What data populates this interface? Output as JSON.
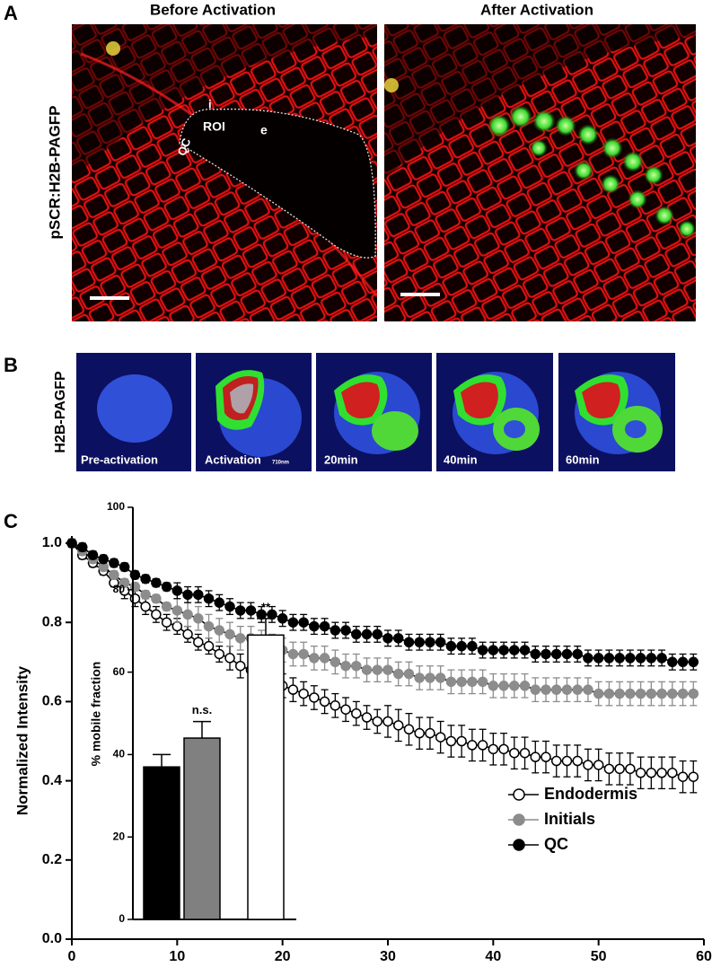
{
  "figure": {
    "panel_a": {
      "label": "A",
      "titles": [
        "Before Activation",
        "After Activation"
      ],
      "ylabel": "pSCR:H2B-PAGFP",
      "annotations": [
        "i",
        "ROI",
        "e",
        "QC"
      ]
    },
    "panel_b": {
      "label": "B",
      "ylabel": "H2B-PAGFP",
      "frames": [
        "Pre-activation",
        "Activation",
        "20min",
        "40min",
        "60min"
      ],
      "wavelength": "710nm"
    },
    "panel_c": {
      "label": "C"
    }
  },
  "chart_data": [
    {
      "type": "line",
      "ylabel": "Normalized Intensity",
      "x": [
        0,
        1,
        2,
        3,
        4,
        5,
        6,
        7,
        8,
        9,
        10,
        11,
        12,
        13,
        14,
        15,
        16,
        17,
        18,
        19,
        20,
        21,
        22,
        23,
        24,
        25,
        26,
        27,
        28,
        29,
        30,
        31,
        32,
        33,
        34,
        35,
        36,
        37,
        38,
        39,
        40,
        41,
        42,
        43,
        44,
        45,
        46,
        47,
        48,
        49,
        50,
        51,
        52,
        53,
        54,
        55,
        56,
        57,
        58,
        59
      ],
      "xlim": [
        0,
        60
      ],
      "xticks": [
        0,
        10,
        20,
        30,
        40,
        50,
        60
      ],
      "ylim": [
        0,
        1
      ],
      "yticks": [
        {
          "value": 0,
          "label": "0.0"
        },
        0.2,
        0.4,
        0.6,
        0.8,
        {
          "value": 1,
          "label": "1.0"
        }
      ],
      "legend": "lower right",
      "series": [
        {
          "name": "Endodermis",
          "color": "#000000",
          "fill": "#ffffff",
          "values": [
            1.0,
            0.97,
            0.95,
            0.93,
            0.9,
            0.88,
            0.86,
            0.84,
            0.82,
            0.8,
            0.79,
            0.77,
            0.75,
            0.74,
            0.72,
            0.71,
            0.69,
            0.68,
            0.67,
            0.65,
            0.64,
            0.63,
            0.62,
            0.61,
            0.6,
            0.59,
            0.58,
            0.57,
            0.56,
            0.55,
            0.55,
            0.54,
            0.53,
            0.52,
            0.52,
            0.51,
            0.5,
            0.5,
            0.49,
            0.49,
            0.48,
            0.48,
            0.47,
            0.47,
            0.46,
            0.46,
            0.45,
            0.45,
            0.45,
            0.44,
            0.44,
            0.43,
            0.43,
            0.43,
            0.42,
            0.42,
            0.42,
            0.42,
            0.41,
            0.41
          ],
          "errors": [
            0.01,
            0.01,
            0.01,
            0.01,
            0.01,
            0.02,
            0.02,
            0.02,
            0.02,
            0.02,
            0.02,
            0.02,
            0.02,
            0.02,
            0.02,
            0.03,
            0.03,
            0.03,
            0.03,
            0.03,
            0.03,
            0.03,
            0.03,
            0.03,
            0.03,
            0.03,
            0.03,
            0.03,
            0.03,
            0.03,
            0.04,
            0.04,
            0.04,
            0.04,
            0.04,
            0.04,
            0.04,
            0.04,
            0.04,
            0.04,
            0.04,
            0.04,
            0.04,
            0.04,
            0.04,
            0.04,
            0.04,
            0.04,
            0.04,
            0.04,
            0.04,
            0.04,
            0.04,
            0.04,
            0.04,
            0.04,
            0.04,
            0.04,
            0.04,
            0.04
          ]
        },
        {
          "name": "Initials",
          "color": "#8c8c8c",
          "fill": "#8c8c8c",
          "values": [
            1.0,
            0.98,
            0.96,
            0.94,
            0.92,
            0.9,
            0.89,
            0.87,
            0.86,
            0.84,
            0.83,
            0.82,
            0.81,
            0.79,
            0.78,
            0.77,
            0.76,
            0.76,
            0.75,
            0.74,
            0.73,
            0.72,
            0.72,
            0.71,
            0.71,
            0.7,
            0.69,
            0.69,
            0.68,
            0.68,
            0.68,
            0.67,
            0.67,
            0.66,
            0.66,
            0.66,
            0.65,
            0.65,
            0.65,
            0.65,
            0.64,
            0.64,
            0.64,
            0.64,
            0.63,
            0.63,
            0.63,
            0.63,
            0.63,
            0.63,
            0.62,
            0.62,
            0.62,
            0.62,
            0.62,
            0.62,
            0.62,
            0.62,
            0.62,
            0.62
          ],
          "errors": [
            0.01,
            0.01,
            0.01,
            0.01,
            0.01,
            0.01,
            0.01,
            0.01,
            0.01,
            0.01,
            0.03,
            0.03,
            0.03,
            0.03,
            0.03,
            0.03,
            0.03,
            0.03,
            0.03,
            0.03,
            0.03,
            0.03,
            0.03,
            0.03,
            0.03,
            0.03,
            0.03,
            0.03,
            0.03,
            0.03,
            0.03,
            0.03,
            0.03,
            0.03,
            0.03,
            0.03,
            0.03,
            0.03,
            0.03,
            0.03,
            0.03,
            0.03,
            0.03,
            0.03,
            0.03,
            0.03,
            0.03,
            0.03,
            0.03,
            0.03,
            0.03,
            0.03,
            0.03,
            0.03,
            0.03,
            0.03,
            0.03,
            0.03,
            0.03,
            0.03
          ]
        },
        {
          "name": "QC",
          "color": "#000000",
          "fill": "#000000",
          "values": [
            1.0,
            0.99,
            0.97,
            0.96,
            0.95,
            0.94,
            0.92,
            0.91,
            0.9,
            0.89,
            0.88,
            0.87,
            0.87,
            0.86,
            0.85,
            0.84,
            0.83,
            0.83,
            0.82,
            0.82,
            0.81,
            0.8,
            0.8,
            0.79,
            0.79,
            0.78,
            0.78,
            0.77,
            0.77,
            0.77,
            0.76,
            0.76,
            0.75,
            0.75,
            0.75,
            0.75,
            0.74,
            0.74,
            0.74,
            0.73,
            0.73,
            0.73,
            0.73,
            0.73,
            0.72,
            0.72,
            0.72,
            0.72,
            0.72,
            0.71,
            0.71,
            0.71,
            0.71,
            0.71,
            0.71,
            0.71,
            0.71,
            0.7,
            0.7,
            0.7
          ],
          "errors": [
            0.01,
            0.01,
            0.01,
            0.01,
            0.01,
            0.01,
            0.01,
            0.01,
            0.01,
            0.01,
            0.02,
            0.02,
            0.02,
            0.02,
            0.02,
            0.02,
            0.02,
            0.02,
            0.02,
            0.02,
            0.02,
            0.02,
            0.02,
            0.02,
            0.02,
            0.02,
            0.02,
            0.02,
            0.02,
            0.02,
            0.02,
            0.02,
            0.02,
            0.02,
            0.02,
            0.02,
            0.02,
            0.02,
            0.02,
            0.02,
            0.02,
            0.02,
            0.02,
            0.02,
            0.02,
            0.02,
            0.02,
            0.02,
            0.02,
            0.02,
            0.02,
            0.02,
            0.02,
            0.02,
            0.02,
            0.02,
            0.02,
            0.02,
            0.02,
            0.02
          ]
        }
      ]
    },
    {
      "type": "bar",
      "ylabel": "% mobile fraction",
      "categories": [
        null,
        null,
        null
      ],
      "values": [
        37,
        44,
        69
      ],
      "errors": [
        3,
        4,
        4
      ],
      "colors": [
        "#000000",
        "#808080",
        "#ffffff"
      ],
      "annotations": [
        null,
        "n.s.",
        "**"
      ],
      "ylim": [
        0,
        100
      ],
      "yticks": [
        0,
        20,
        40,
        60,
        80,
        100
      ]
    }
  ]
}
